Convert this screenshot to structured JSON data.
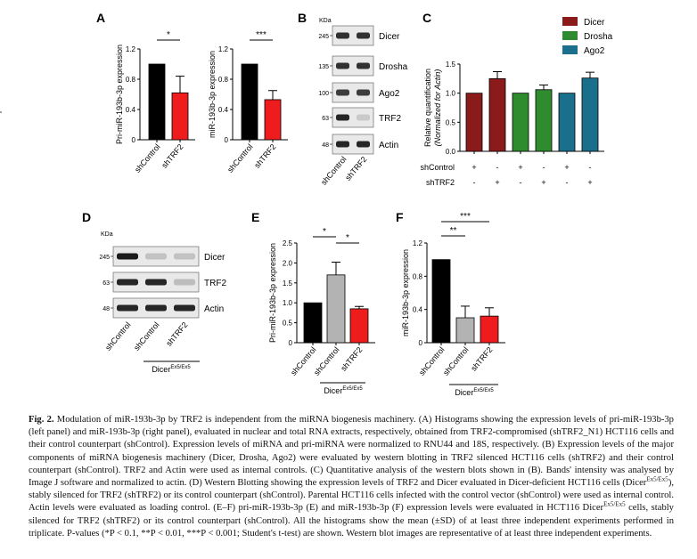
{
  "figure": {
    "panel_labels": {
      "A": "A",
      "B": "B",
      "C": "C",
      "D": "D",
      "E": "E",
      "F": "F"
    },
    "kda_label": "KDa",
    "colors": {
      "black": "#000000",
      "red": "#ee1c1c",
      "gray": "#b3b3b3",
      "dicer": "#8b1a1a",
      "drosha": "#2e8b2e",
      "ago2": "#1a6f8c"
    }
  },
  "chart_data": [
    {
      "id": "A1",
      "type": "bar",
      "title": "",
      "ylabel": "Pri-miR-193b-3p expression",
      "categories": [
        "shControl",
        "shTRF2"
      ],
      "values": [
        1.0,
        0.62
      ],
      "errors": [
        0,
        0.22
      ],
      "ylim": [
        0,
        1.2
      ],
      "yticks": [
        "0",
        "0.4",
        "0.8",
        "1.2"
      ],
      "significance": "*",
      "colors": [
        "#000000",
        "#ee1c1c"
      ]
    },
    {
      "id": "A2",
      "type": "bar",
      "title": "",
      "ylabel": "miR-193b-3p expression",
      "categories": [
        "shControl",
        "shTRF2"
      ],
      "values": [
        1.0,
        0.53
      ],
      "errors": [
        0,
        0.12
      ],
      "ylim": [
        0,
        1.2
      ],
      "yticks": [
        "0",
        "0.4",
        "0.8",
        "1.2"
      ],
      "significance": "***",
      "colors": [
        "#000000",
        "#ee1c1c"
      ]
    },
    {
      "id": "C",
      "type": "bar",
      "ylabel": "Relative quantification",
      "ylabel2": "(Normalized for Actin)",
      "categories": [
        "Dicer shControl",
        "Dicer shTRF2",
        "Drosha shControl",
        "Drosha shTRF2",
        "Ago2 shControl",
        "Ago2 shTRF2"
      ],
      "values": [
        1.0,
        1.25,
        1.0,
        1.06,
        1.0,
        1.26
      ],
      "errors": [
        0,
        0.12,
        0,
        0.08,
        0,
        0.1
      ],
      "ylim": [
        0,
        1.5
      ],
      "yticks": [
        "0.0",
        "0.5",
        "1.0",
        "1.5"
      ],
      "legend": [
        "Dicer",
        "Drosha",
        "Ago2"
      ],
      "legend_colors": [
        "#8b1a1a",
        "#2e8b2e",
        "#1a6f8c"
      ],
      "row_labels": [
        "shControl",
        "shTRF2"
      ],
      "shcontrol_signs": [
        "+",
        "-",
        "+",
        "-",
        "+",
        "-"
      ],
      "shtrf2_signs": [
        "-",
        "+",
        "-",
        "+",
        "-",
        "+"
      ]
    },
    {
      "id": "E",
      "type": "bar",
      "ylabel": "Pri-miR-193b-3p expression",
      "categories": [
        "shControl",
        "shControl",
        "shTRF2"
      ],
      "values": [
        1.0,
        1.7,
        0.85
      ],
      "errors": [
        0,
        0.32,
        0.06
      ],
      "ylim": [
        0,
        2.5
      ],
      "yticks": [
        "0",
        "0.5",
        "1.0",
        "1.5",
        "2.0",
        "2.5"
      ],
      "significance": [
        "*",
        "*"
      ],
      "group_label": "Dicer",
      "group_sup": "Ex5/Ex5",
      "colors": [
        "#000000",
        "#b3b3b3",
        "#ee1c1c"
      ]
    },
    {
      "id": "F",
      "type": "bar",
      "ylabel": "miR-193b-3p expression",
      "categories": [
        "shControl",
        "shControl",
        "shTRF2"
      ],
      "values": [
        1.0,
        0.3,
        0.32
      ],
      "errors": [
        0,
        0.14,
        0.1
      ],
      "ylim": [
        0,
        1.2
      ],
      "yticks": [
        "0",
        "0.4",
        "0.8",
        "1.2"
      ],
      "significance": [
        "**",
        "***"
      ],
      "group_label": "Dicer",
      "group_sup": "Ex5/Ex5",
      "colors": [
        "#000000",
        "#b3b3b3",
        "#ee1c1c"
      ]
    }
  ],
  "blots": {
    "B": {
      "rows": [
        {
          "kda": "245",
          "label": "Dicer"
        },
        {
          "kda": "135",
          "label": "Drosha"
        },
        {
          "kda": "100",
          "label": "Ago2"
        },
        {
          "kda": "63",
          "label": "TRF2"
        },
        {
          "kda": "48",
          "label": "Actin"
        }
      ],
      "lanes": [
        "shControl",
        "shTRF2"
      ]
    },
    "D": {
      "rows": [
        {
          "kda": "245",
          "label": "Dicer"
        },
        {
          "kda": "63",
          "label": "TRF2"
        },
        {
          "kda": "48",
          "label": "Actin"
        }
      ],
      "lanes": [
        "shControl",
        "shControl",
        "shTRF2"
      ],
      "group_label": "Dicer",
      "group_sup": "Ex5/Ex5"
    }
  },
  "caption": {
    "label": "Fig. 2.",
    "p1": " Modulation of miR-193b-3p by TRF2 is independent from the miRNA biogenesis machinery. (A) Histograms showing the expression levels of pri-miR-193b-3p (left panel) and miR-193b-3p (right panel), evaluated in nuclear and total RNA extracts, respectively, obtained from TRF2-compromised (shTRF2_N1) HCT116 cells and their control counterpart (shControl). Expression levels of miRNA and pri-miRNA were normalized to RNU44 and 18S, respectively. (B) Expression levels of the major components of miRNA biogenesis machinery (Dicer, Drosha, Ago2) were evaluated by western blotting in TRF2 silenced HCT116 cells (shTRF2) and their control counterpart (shControl). TRF2 and Actin were used as internal controls. (C) Quantitative analysis of the western blots shown in (B). Bands' intensity was analysed by Image J software and normalized to actin. (D) Western Blotting showing the expression levels of TRF2 and Dicer evaluated in Dicer-deficient HCT116 cells (Dicer",
    "sup1": "Ex5/Ex5",
    "p2": "), stably silenced for TRF2 (shTRF2) or its control counterpart (shControl). Parental HCT116 cells infected with the control vector (shControl) were used as internal control. Actin levels were evaluated as loading control. (E–F) pri-miR-193b-3p (E) and miR-193b-3p (F) expression levels were evaluated in HCT116 Dicer",
    "sup2": "Ex5/Ex5",
    "p3": " cells, stably silenced for TRF2 (shTRF2) or its control counterpart (shControl). All the histograms show the mean (±SD) of at least three independent experiments performed in triplicate. P-values (*P < 0.1, **P < 0.01, ***P < 0.001; Student's t-test) are shown. Western blot images are representative of at least three independent experiments."
  }
}
